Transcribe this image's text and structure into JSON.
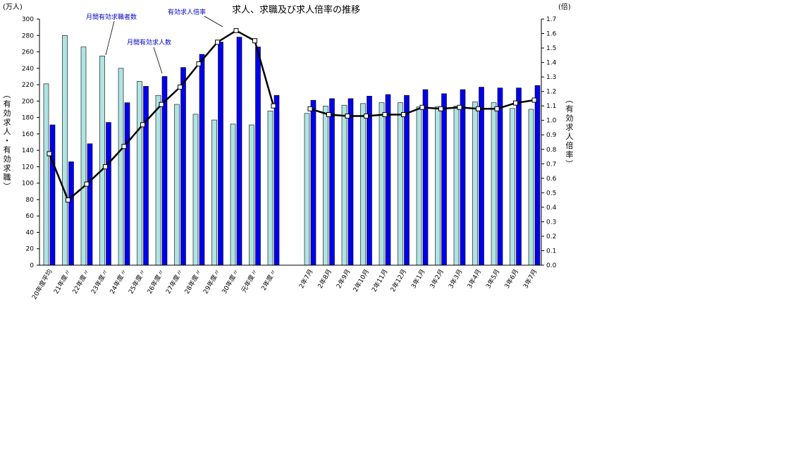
{
  "chart_data": {
    "type": "bar",
    "title": "求人、求職及び求人倍率の推移",
    "left_unit": "(万人)",
    "right_unit": "(倍)",
    "ylabel_left": "（有効求人・有効求職）",
    "ylabel_right": "（有効求人倍率）",
    "ylim_left": [
      0,
      300
    ],
    "ylim_right": [
      0,
      1.7
    ],
    "yticks_left": [
      0,
      20,
      40,
      60,
      80,
      100,
      120,
      140,
      160,
      180,
      200,
      220,
      240,
      260,
      280,
      300
    ],
    "yticks_right": [
      "0.0",
      "0.1",
      "0.2",
      "0.3",
      "0.4",
      "0.5",
      "0.6",
      "0.7",
      "0.8",
      "0.9",
      "1.0",
      "1.1",
      "1.2",
      "1.3",
      "1.4",
      "1.5",
      "1.6",
      "1.7"
    ],
    "categories_annual": [
      "20年度平均",
      "21年度〃",
      "22年度〃",
      "23年度〃",
      "24年度〃",
      "25年度〃",
      "26年度〃",
      "27年度〃",
      "28年度〃",
      "29年度〃",
      "30年度〃",
      "元年度〃",
      "2年度〃"
    ],
    "categories_monthly": [
      "2年7月",
      "2年8月",
      "2年9月",
      "2年10月",
      "2年11月",
      "2年12月",
      "3年1月",
      "3年2月",
      "3年3月",
      "3年4月",
      "3年5月",
      "3年6月",
      "3年7月"
    ],
    "series": [
      {
        "name": "月間有効求職者数",
        "color": "#b0e4e4",
        "annual": [
          221,
          280,
          266,
          255,
          240,
          224,
          207,
          196,
          184,
          177,
          172,
          171,
          188
        ],
        "monthly": [
          185,
          194,
          195,
          197,
          198,
          198,
          193,
          193,
          194,
          199,
          198,
          191,
          190
        ]
      },
      {
        "name": "月間有効求人数",
        "color": "#0000ee",
        "annual": [
          171,
          126,
          148,
          174,
          198,
          218,
          230,
          241,
          257,
          272,
          278,
          266,
          207
        ],
        "monthly": [
          201,
          203,
          203,
          206,
          208,
          207,
          214,
          209,
          214,
          217,
          216,
          216,
          219
        ]
      },
      {
        "name": "有効求人倍率",
        "color": "#000000",
        "annual": [
          0.77,
          0.45,
          0.56,
          0.68,
          0.82,
          0.97,
          1.11,
          1.23,
          1.39,
          1.54,
          1.62,
          1.55,
          1.1
        ],
        "monthly": [
          1.08,
          1.04,
          1.03,
          1.03,
          1.04,
          1.04,
          1.09,
          1.08,
          1.09,
          1.08,
          1.08,
          1.12,
          1.14
        ]
      }
    ],
    "legend": "annotations",
    "grid": false
  }
}
